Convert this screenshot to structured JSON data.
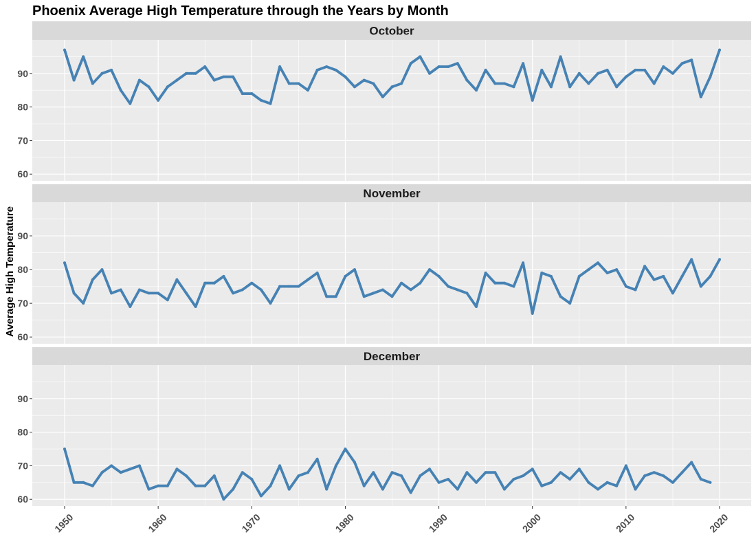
{
  "chart_data": {
    "type": "line",
    "title": "Phoenix Average High Temperature through the Years by Month",
    "xlabel": "",
    "ylabel": "Average High Temperature",
    "xlim": [
      1950,
      2020
    ],
    "ylim": [
      58,
      100
    ],
    "x_ticks": [
      "1950",
      "1960",
      "1970",
      "1980",
      "1990",
      "2000",
      "2010",
      "2020"
    ],
    "y_ticks": [
      "60",
      "70",
      "80",
      "90"
    ],
    "grid": true,
    "legend": "none",
    "line_color": "#4682B4",
    "panels": [
      {
        "strip": "October",
        "x": [
          1950,
          1951,
          1952,
          1953,
          1954,
          1955,
          1956,
          1957,
          1958,
          1959,
          1960,
          1961,
          1962,
          1963,
          1964,
          1965,
          1966,
          1967,
          1968,
          1969,
          1970,
          1971,
          1972,
          1973,
          1974,
          1975,
          1976,
          1977,
          1978,
          1979,
          1980,
          1981,
          1982,
          1983,
          1984,
          1985,
          1986,
          1987,
          1988,
          1989,
          1990,
          1991,
          1992,
          1993,
          1994,
          1995,
          1996,
          1997,
          1998,
          1999,
          2000,
          2001,
          2002,
          2003,
          2004,
          2005,
          2006,
          2007,
          2008,
          2009,
          2010,
          2011,
          2012,
          2013,
          2014,
          2015,
          2016,
          2017,
          2018,
          2019,
          2020
        ],
        "values": [
          97,
          88,
          95,
          87,
          90,
          91,
          85,
          81,
          88,
          86,
          82,
          86,
          88,
          90,
          90,
          92,
          88,
          89,
          89,
          84,
          84,
          82,
          81,
          92,
          87,
          87,
          85,
          91,
          92,
          91,
          89,
          86,
          88,
          87,
          83,
          86,
          87,
          93,
          95,
          90,
          92,
          92,
          93,
          88,
          85,
          91,
          87,
          87,
          86,
          93,
          82,
          91,
          86,
          95,
          86,
          90,
          87,
          90,
          91,
          86,
          89,
          91,
          91,
          87,
          92,
          90,
          93,
          94,
          83,
          89,
          97
        ]
      },
      {
        "strip": "November",
        "x": [
          1950,
          1951,
          1952,
          1953,
          1954,
          1955,
          1956,
          1957,
          1958,
          1959,
          1960,
          1961,
          1962,
          1963,
          1964,
          1965,
          1966,
          1967,
          1968,
          1969,
          1970,
          1971,
          1972,
          1973,
          1974,
          1975,
          1976,
          1977,
          1978,
          1979,
          1980,
          1981,
          1982,
          1983,
          1984,
          1985,
          1986,
          1987,
          1988,
          1989,
          1990,
          1991,
          1992,
          1993,
          1994,
          1995,
          1996,
          1997,
          1998,
          1999,
          2000,
          2001,
          2002,
          2003,
          2004,
          2005,
          2006,
          2007,
          2008,
          2009,
          2010,
          2011,
          2012,
          2013,
          2014,
          2015,
          2016,
          2017,
          2018,
          2019,
          2020
        ],
        "values": [
          82,
          73,
          70,
          77,
          80,
          73,
          74,
          69,
          74,
          73,
          73,
          71,
          77,
          73,
          69,
          76,
          76,
          78,
          73,
          74,
          76,
          74,
          70,
          75,
          75,
          75,
          77,
          79,
          72,
          72,
          78,
          80,
          72,
          73,
          74,
          72,
          76,
          74,
          76,
          80,
          78,
          75,
          74,
          73,
          69,
          79,
          76,
          76,
          75,
          82,
          67,
          79,
          78,
          72,
          70,
          78,
          80,
          82,
          79,
          80,
          75,
          74,
          81,
          77,
          78,
          73,
          78,
          83,
          75,
          78,
          83
        ]
      },
      {
        "strip": "December",
        "x": [
          1950,
          1951,
          1952,
          1953,
          1954,
          1955,
          1956,
          1957,
          1958,
          1959,
          1960,
          1961,
          1962,
          1963,
          1964,
          1965,
          1966,
          1967,
          1968,
          1969,
          1970,
          1971,
          1972,
          1973,
          1974,
          1975,
          1976,
          1977,
          1978,
          1979,
          1980,
          1981,
          1982,
          1983,
          1984,
          1985,
          1986,
          1987,
          1988,
          1989,
          1990,
          1991,
          1992,
          1993,
          1994,
          1995,
          1996,
          1997,
          1998,
          1999,
          2000,
          2001,
          2002,
          2003,
          2004,
          2005,
          2006,
          2007,
          2008,
          2009,
          2010,
          2011,
          2012,
          2013,
          2014,
          2015,
          2016,
          2017,
          2018,
          2019
        ],
        "values": [
          75,
          65,
          65,
          64,
          68,
          70,
          68,
          69,
          70,
          63,
          64,
          64,
          69,
          67,
          64,
          64,
          67,
          60,
          63,
          68,
          66,
          61,
          64,
          70,
          63,
          67,
          68,
          72,
          63,
          70,
          75,
          71,
          64,
          68,
          63,
          68,
          67,
          62,
          67,
          69,
          65,
          66,
          63,
          68,
          65,
          68,
          68,
          63,
          66,
          67,
          69,
          64,
          65,
          68,
          66,
          69,
          65,
          63,
          65,
          64,
          70,
          63,
          67,
          68,
          67,
          65,
          68,
          71,
          66,
          65
        ]
      }
    ]
  }
}
